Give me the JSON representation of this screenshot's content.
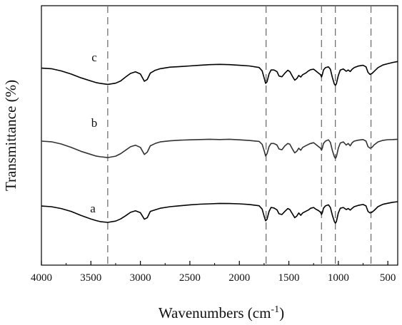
{
  "chart_data": {
    "type": "line",
    "xlabel_main": "Wavenumbers (cm",
    "xlabel_sup": "-1",
    "xlabel_close": ")",
    "ylabel": "Transmittance (%)",
    "xlim": [
      4000,
      400
    ],
    "x_reversed": true,
    "x_ticks": [
      4000,
      3500,
      3000,
      2500,
      2000,
      1500,
      1000,
      500
    ],
    "x_tick_labels": [
      "4000",
      "3500",
      "3000",
      "2500",
      "2000",
      "1500",
      "1000",
      "500"
    ],
    "y_ticks_shown": false,
    "reference_lines": [
      3330,
      1730,
      1170,
      1030,
      670
    ],
    "reference_line_style": "dashed",
    "colors": {
      "curve_a": "#000000",
      "curve_b": "#333333",
      "curve_c": "#000000",
      "guides": "#666666"
    },
    "series": [
      {
        "name": "a",
        "offset": 0,
        "points": [
          [
            4000,
            0.4
          ],
          [
            3900,
            0.0
          ],
          [
            3800,
            -1.2
          ],
          [
            3700,
            -3.0
          ],
          [
            3600,
            -5.6
          ],
          [
            3500,
            -7.8
          ],
          [
            3450,
            -8.8
          ],
          [
            3400,
            -9.6
          ],
          [
            3330,
            -10.0
          ],
          [
            3250,
            -9.2
          ],
          [
            3200,
            -7.8
          ],
          [
            3150,
            -5.8
          ],
          [
            3100,
            -3.6
          ],
          [
            3050,
            -2.6
          ],
          [
            3000,
            -3.8
          ],
          [
            2960,
            -8.0
          ],
          [
            2930,
            -7.0
          ],
          [
            2900,
            -3.0
          ],
          [
            2850,
            -2.0
          ],
          [
            2800,
            -1.0
          ],
          [
            2700,
            0.0
          ],
          [
            2600,
            0.6
          ],
          [
            2500,
            1.2
          ],
          [
            2400,
            1.6
          ],
          [
            2300,
            1.8
          ],
          [
            2200,
            2.1
          ],
          [
            2100,
            2.0
          ],
          [
            2000,
            1.8
          ],
          [
            1900,
            1.4
          ],
          [
            1800,
            0.6
          ],
          [
            1770,
            -1.5
          ],
          [
            1750,
            -6.0
          ],
          [
            1735,
            -9.0
          ],
          [
            1720,
            -8.0
          ],
          [
            1700,
            -3.0
          ],
          [
            1680,
            -0.5
          ],
          [
            1650,
            -0.8
          ],
          [
            1620,
            -2.0
          ],
          [
            1600,
            -4.5
          ],
          [
            1570,
            -5.0
          ],
          [
            1540,
            -3.0
          ],
          [
            1510,
            -1.2
          ],
          [
            1490,
            -1.8
          ],
          [
            1460,
            -5.0
          ],
          [
            1440,
            -7.0
          ],
          [
            1420,
            -6.0
          ],
          [
            1400,
            -4.0
          ],
          [
            1380,
            -5.5
          ],
          [
            1360,
            -4.0
          ],
          [
            1330,
            -3.0
          ],
          [
            1300,
            -2.0
          ],
          [
            1280,
            -1.0
          ],
          [
            1250,
            -0.5
          ],
          [
            1230,
            -1.5
          ],
          [
            1200,
            -2.5
          ],
          [
            1180,
            -3.5
          ],
          [
            1170,
            -5.0
          ],
          [
            1160,
            -3.5
          ],
          [
            1150,
            -1.0
          ],
          [
            1130,
            0.5
          ],
          [
            1100,
            1.2
          ],
          [
            1080,
            -0.5
          ],
          [
            1060,
            -5.5
          ],
          [
            1040,
            -9.5
          ],
          [
            1030,
            -10.5
          ],
          [
            1020,
            -9.5
          ],
          [
            1000,
            -4.0
          ],
          [
            980,
            -1.0
          ],
          [
            950,
            -0.5
          ],
          [
            920,
            -1.8
          ],
          [
            900,
            -1.2
          ],
          [
            880,
            -2.2
          ],
          [
            860,
            -1.0
          ],
          [
            840,
            0.0
          ],
          [
            800,
            0.8
          ],
          [
            750,
            1.4
          ],
          [
            720,
            0.5
          ],
          [
            700,
            -3.0
          ],
          [
            680,
            -4.0
          ],
          [
            660,
            -3.5
          ],
          [
            640,
            -2.5
          ],
          [
            600,
            0.0
          ],
          [
            550,
            1.5
          ],
          [
            500,
            2.2
          ],
          [
            450,
            2.8
          ],
          [
            400,
            3.2
          ]
        ]
      },
      {
        "name": "b",
        "offset": 0,
        "points": [
          [
            4000,
            0.0
          ],
          [
            3900,
            -0.4
          ],
          [
            3800,
            -1.8
          ],
          [
            3700,
            -4.0
          ],
          [
            3600,
            -6.5
          ],
          [
            3500,
            -8.5
          ],
          [
            3450,
            -9.5
          ],
          [
            3400,
            -10.0
          ],
          [
            3330,
            -10.5
          ],
          [
            3250,
            -9.6
          ],
          [
            3200,
            -8.0
          ],
          [
            3150,
            -5.8
          ],
          [
            3100,
            -3.6
          ],
          [
            3050,
            -2.6
          ],
          [
            3000,
            -4.0
          ],
          [
            2960,
            -8.5
          ],
          [
            2930,
            -7.0
          ],
          [
            2900,
            -3.0
          ],
          [
            2850,
            -1.5
          ],
          [
            2800,
            -0.5
          ],
          [
            2700,
            0.2
          ],
          [
            2600,
            0.6
          ],
          [
            2500,
            0.8
          ],
          [
            2400,
            1.0
          ],
          [
            2300,
            1.2
          ],
          [
            2200,
            1.0
          ],
          [
            2100,
            1.2
          ],
          [
            2000,
            0.8
          ],
          [
            1900,
            0.4
          ],
          [
            1800,
            -0.2
          ],
          [
            1770,
            -2.0
          ],
          [
            1750,
            -6.0
          ],
          [
            1735,
            -9.5
          ],
          [
            1720,
            -8.0
          ],
          [
            1700,
            -3.5
          ],
          [
            1680,
            -1.5
          ],
          [
            1650,
            -1.5
          ],
          [
            1620,
            -2.5
          ],
          [
            1600,
            -5.0
          ],
          [
            1570,
            -5.5
          ],
          [
            1540,
            -3.0
          ],
          [
            1510,
            -1.5
          ],
          [
            1490,
            -2.0
          ],
          [
            1460,
            -5.5
          ],
          [
            1440,
            -7.5
          ],
          [
            1420,
            -6.5
          ],
          [
            1400,
            -4.5
          ],
          [
            1380,
            -5.8
          ],
          [
            1360,
            -4.0
          ],
          [
            1330,
            -3.0
          ],
          [
            1300,
            -2.0
          ],
          [
            1280,
            -1.5
          ],
          [
            1250,
            -1.0
          ],
          [
            1230,
            -2.0
          ],
          [
            1200,
            -3.5
          ],
          [
            1180,
            -4.5
          ],
          [
            1170,
            -5.8
          ],
          [
            1160,
            -4.0
          ],
          [
            1150,
            -1.5
          ],
          [
            1130,
            0.0
          ],
          [
            1100,
            0.8
          ],
          [
            1080,
            -0.8
          ],
          [
            1060,
            -6.0
          ],
          [
            1040,
            -10.0
          ],
          [
            1030,
            -11.0
          ],
          [
            1020,
            -10.0
          ],
          [
            1000,
            -4.5
          ],
          [
            980,
            -1.2
          ],
          [
            950,
            -0.5
          ],
          [
            920,
            -2.5
          ],
          [
            900,
            -1.5
          ],
          [
            880,
            -3.0
          ],
          [
            860,
            -1.0
          ],
          [
            840,
            0.0
          ],
          [
            800,
            0.6
          ],
          [
            750,
            1.0
          ],
          [
            720,
            0.0
          ],
          [
            700,
            -3.5
          ],
          [
            680,
            -4.5
          ],
          [
            660,
            -4.0
          ],
          [
            640,
            -2.5
          ],
          [
            600,
            -0.5
          ],
          [
            550,
            0.5
          ],
          [
            500,
            0.9
          ],
          [
            450,
            1.0
          ],
          [
            400,
            1.2
          ]
        ]
      },
      {
        "name": "c",
        "offset": 0,
        "points": [
          [
            4000,
            0.2
          ],
          [
            3900,
            -0.2
          ],
          [
            3800,
            -1.6
          ],
          [
            3700,
            -3.6
          ],
          [
            3600,
            -6.0
          ],
          [
            3500,
            -8.0
          ],
          [
            3450,
            -9.0
          ],
          [
            3400,
            -9.6
          ],
          [
            3330,
            -10.2
          ],
          [
            3250,
            -9.4
          ],
          [
            3200,
            -8.0
          ],
          [
            3150,
            -5.5
          ],
          [
            3100,
            -3.2
          ],
          [
            3050,
            -2.2
          ],
          [
            3000,
            -3.5
          ],
          [
            2960,
            -8.2
          ],
          [
            2930,
            -7.0
          ],
          [
            2900,
            -3.0
          ],
          [
            2850,
            -1.2
          ],
          [
            2800,
            -0.2
          ],
          [
            2700,
            0.8
          ],
          [
            2600,
            1.2
          ],
          [
            2500,
            1.6
          ],
          [
            2400,
            2.0
          ],
          [
            2300,
            2.4
          ],
          [
            2200,
            2.6
          ],
          [
            2100,
            2.4
          ],
          [
            2000,
            2.0
          ],
          [
            1900,
            1.6
          ],
          [
            1800,
            0.6
          ],
          [
            1770,
            -1.5
          ],
          [
            1750,
            -6.0
          ],
          [
            1735,
            -9.5
          ],
          [
            1720,
            -8.5
          ],
          [
            1700,
            -3.5
          ],
          [
            1680,
            -1.0
          ],
          [
            1650,
            -1.0
          ],
          [
            1620,
            -2.0
          ],
          [
            1600,
            -4.8
          ],
          [
            1570,
            -5.3
          ],
          [
            1540,
            -3.0
          ],
          [
            1510,
            -1.2
          ],
          [
            1490,
            -2.0
          ],
          [
            1460,
            -5.5
          ],
          [
            1440,
            -7.5
          ],
          [
            1420,
            -6.5
          ],
          [
            1400,
            -4.5
          ],
          [
            1380,
            -5.5
          ],
          [
            1360,
            -4.0
          ],
          [
            1330,
            -3.0
          ],
          [
            1300,
            -1.5
          ],
          [
            1280,
            -0.8
          ],
          [
            1250,
            -0.5
          ],
          [
            1230,
            -1.5
          ],
          [
            1200,
            -3.0
          ],
          [
            1180,
            -4.0
          ],
          [
            1170,
            -5.5
          ],
          [
            1160,
            -3.5
          ],
          [
            1150,
            -1.0
          ],
          [
            1130,
            0.5
          ],
          [
            1100,
            1.0
          ],
          [
            1080,
            -0.5
          ],
          [
            1060,
            -5.8
          ],
          [
            1040,
            -10.0
          ],
          [
            1030,
            -10.8
          ],
          [
            1020,
            -9.8
          ],
          [
            1000,
            -4.5
          ],
          [
            980,
            -1.0
          ],
          [
            950,
            -0.3
          ],
          [
            920,
            -1.8
          ],
          [
            900,
            -1.0
          ],
          [
            880,
            -2.0
          ],
          [
            860,
            -0.5
          ],
          [
            840,
            0.5
          ],
          [
            800,
            1.5
          ],
          [
            750,
            2.0
          ],
          [
            720,
            1.0
          ],
          [
            700,
            -2.5
          ],
          [
            680,
            -3.8
          ],
          [
            660,
            -3.2
          ],
          [
            640,
            -2.0
          ],
          [
            600,
            0.5
          ],
          [
            550,
            2.2
          ],
          [
            500,
            3.0
          ],
          [
            450,
            3.8
          ],
          [
            400,
            4.4
          ]
        ]
      }
    ]
  }
}
